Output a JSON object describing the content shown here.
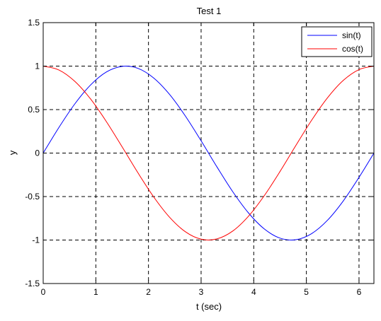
{
  "chart_data": {
    "type": "line",
    "title": "Test 1",
    "xlabel": "t (sec)",
    "ylabel": "y",
    "xlim": [
      0,
      6.2832
    ],
    "ylim": [
      -1.5,
      1.5
    ],
    "x_ticks": [
      0,
      1,
      2,
      3,
      4,
      5,
      6
    ],
    "x_tick_labels": [
      "0",
      "1",
      "2",
      "3",
      "4",
      "5",
      "6"
    ],
    "y_ticks": [
      1.5,
      1,
      0.5,
      0,
      -0.5,
      -1,
      -1.5
    ],
    "y_tick_labels": [
      "1.5",
      "1",
      "0.5",
      "0",
      "-0.5",
      "-1",
      "-1.5"
    ],
    "grid": true,
    "legend_position": "top-right",
    "series": [
      {
        "name": "sin(t)",
        "color": "#0000ff",
        "x": [
          0,
          0.3,
          0.6,
          0.9,
          1.2,
          1.5,
          1.8,
          2.1,
          2.4,
          2.7,
          3.0,
          3.3,
          3.6,
          3.9,
          4.2,
          4.5,
          4.8,
          5.1,
          5.4,
          5.7,
          6.0,
          6.2832
        ],
        "values": [
          0,
          0.296,
          0.565,
          0.783,
          0.932,
          0.997,
          0.974,
          0.863,
          0.675,
          0.427,
          0.141,
          -0.158,
          -0.443,
          -0.688,
          -0.872,
          -0.978,
          -0.996,
          -0.926,
          -0.773,
          -0.551,
          -0.279,
          0
        ]
      },
      {
        "name": "cos(t)",
        "color": "#ff0000",
        "x": [
          0,
          0.3,
          0.6,
          0.9,
          1.2,
          1.5,
          1.8,
          2.1,
          2.4,
          2.7,
          3.0,
          3.3,
          3.6,
          3.9,
          4.2,
          4.5,
          4.8,
          5.1,
          5.4,
          5.7,
          6.0,
          6.2832
        ],
        "values": [
          1,
          0.955,
          0.825,
          0.622,
          0.362,
          0.071,
          -0.227,
          -0.505,
          -0.737,
          -0.904,
          -0.99,
          -0.987,
          -0.897,
          -0.726,
          -0.49,
          -0.211,
          0.087,
          0.378,
          0.635,
          0.835,
          0.96,
          1
        ]
      }
    ]
  }
}
